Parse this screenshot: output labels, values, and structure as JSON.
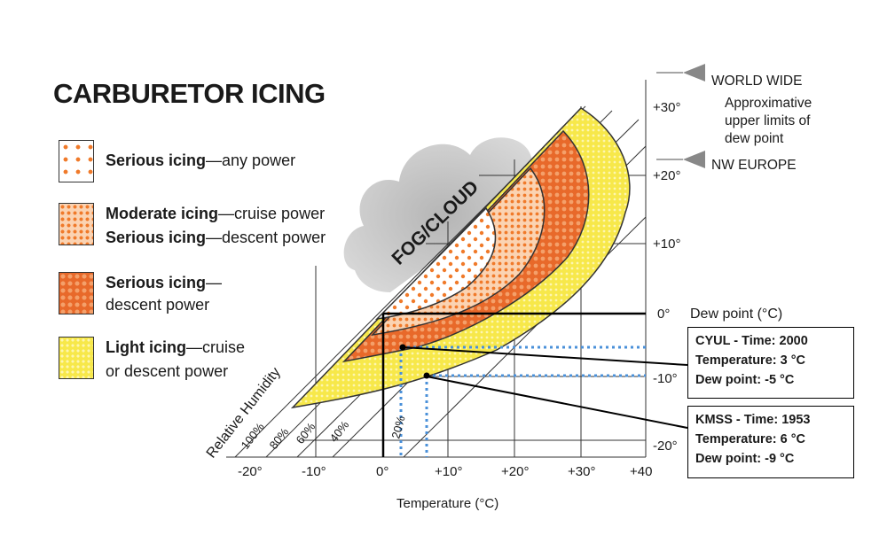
{
  "title": "CARBURETOR ICING",
  "legend": [
    {
      "bold": "Serious icing",
      "rest": "—any power",
      "line2_bold": "",
      "line2_rest": ""
    },
    {
      "bold": "Moderate icing",
      "rest": "—cruise power",
      "line2_bold": "Serious icing",
      "line2_rest": "—descent power"
    },
    {
      "bold": "Serious icing",
      "rest": "—",
      "line2_bold": "",
      "line2_rest": "descent power"
    },
    {
      "bold": "Light icing",
      "rest": "—cruise",
      "line2_bold": "",
      "line2_rest": "or descent power"
    }
  ],
  "fog_label": "FOG/CLOUD",
  "x_axis": {
    "label": "Temperature (°C)",
    "ticks": [
      "-20°",
      "-10°",
      "0°",
      "+10°",
      "+20°",
      "+30°",
      "+40"
    ]
  },
  "y_axis": {
    "label": "Dew point  (°C)",
    "ticks": [
      "+30°",
      "+20°",
      "+10°",
      "0°",
      "-10°",
      "-20°"
    ]
  },
  "rh_label": "Relative Humidity",
  "rh_ticks": [
    "100%",
    "80%",
    "60%",
    "40%",
    "20%"
  ],
  "annotations": {
    "world_wide": "WORLD WIDE",
    "approx": [
      "Approximative",
      "upper limits of",
      "dew point"
    ],
    "nw_europe": "NW EUROPE"
  },
  "observations": [
    {
      "station": "CYUL - Time: 2000",
      "temperature_text": "Temperature: 3 °C",
      "dewpoint_text": "Dew point: -5 °C",
      "temperature": 3,
      "dew_point": -5
    },
    {
      "station": "KMSS - Time: 1953",
      "temperature_text": "Temperature: 6 °C",
      "dewpoint_text": "Dew point: -9 °C",
      "temperature": 6,
      "dew_point": -9
    }
  ],
  "colors": {
    "light_icing": "#f7e84a",
    "serious_any": "#f07a2a",
    "moderate": "#f29a55",
    "serious_descent": "#e8692a",
    "dotted_line": "#4a90d9",
    "cloud": "#bfbfbf"
  }
}
